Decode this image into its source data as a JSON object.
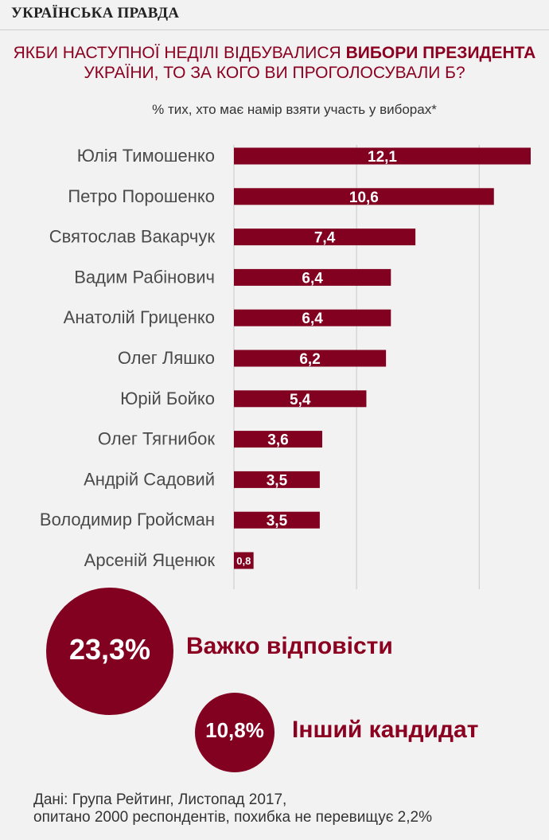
{
  "masthead": "УКРАЇНСЬКА ПРАВДА",
  "title": {
    "part1": "ЯКБИ НАСТУПНОЇ НЕДІЛІ ВІДБУВАЛИСЯ ",
    "bold": "ВИБОРИ ПРЕЗИДЕНТА",
    "part2": "УКРАЇНИ, ТО ЗА КОГО ВИ ПРОГОЛОСУВАЛИ Б?"
  },
  "subtitle": "% тих, хто має намір взяти участь у виборах*",
  "colors": {
    "bar": "#820020",
    "accent": "#8b0020",
    "grid": "#c8c8c8"
  },
  "chart_data": {
    "type": "bar",
    "orientation": "horizontal",
    "categories": [
      "Юлія Тимошенко",
      "Петро Порошенко",
      "Святослав Вакарчук",
      "Вадим Рабінович",
      "Анатолій Гриценко",
      "Олег Ляшко",
      "Юрій Бойко",
      "Олег Тягнибок",
      "Андрій Садовий",
      "Володимир Гройсман",
      "Арсеній Яценюк"
    ],
    "values": [
      12.1,
      10.6,
      7.4,
      6.4,
      6.4,
      6.2,
      5.4,
      3.6,
      3.5,
      3.5,
      0.8
    ],
    "value_labels": [
      "12,1",
      "10,6",
      "7,4",
      "6,4",
      "6,4",
      "6,2",
      "5,4",
      "3,6",
      "3,5",
      "3,5",
      "0,8"
    ],
    "xlim": [
      0,
      12.1
    ],
    "gridlines": [
      0,
      5,
      10
    ],
    "grid": true
  },
  "bubbles": [
    {
      "value": "23,3%",
      "label": "Важко відповісти"
    },
    {
      "value": "10,8%",
      "label": "Інший кандидат"
    }
  ],
  "source": {
    "line1": "Дані: Група Рейтинг, Листопад 2017,",
    "line2": "опитано 2000 респондентів, похибка не перевищує 2,2%"
  }
}
